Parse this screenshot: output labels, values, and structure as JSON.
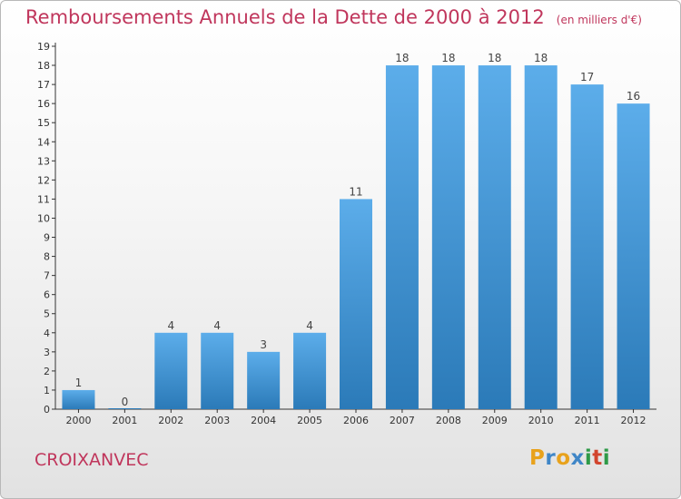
{
  "header": {
    "title": "Remboursements Annuels de la Dette de 2000 à 2012",
    "unit": "(en milliers d'€)"
  },
  "footer": {
    "commune": "CROIXANVEC",
    "logo": {
      "letters": [
        "P",
        "r",
        "o",
        "x",
        "i",
        "t",
        "i"
      ],
      "colors": [
        "#e8a21c",
        "#3f86c7",
        "#e8a21c",
        "#3f86c7",
        "#2f9a48",
        "#d2452e",
        "#2f9a48"
      ]
    }
  },
  "colors": {
    "bar_light": "#5cadea",
    "bar_dark": "#2b7ab8",
    "axis": "#333333",
    "title": "#c0365c"
  },
  "chart_data": {
    "type": "bar",
    "categories": [
      "2000",
      "2001",
      "2002",
      "2003",
      "2004",
      "2005",
      "2006",
      "2007",
      "2008",
      "2009",
      "2010",
      "2011",
      "2012"
    ],
    "values": [
      1,
      0,
      4,
      4,
      3,
      4,
      11,
      18,
      18,
      18,
      18,
      17,
      16
    ],
    "data_labels": [
      "1",
      "0",
      "4",
      "4",
      "3",
      "4",
      "11",
      "18",
      "18",
      "18",
      "18",
      "17",
      "16"
    ],
    "y_ticks": [
      0,
      1,
      2,
      3,
      4,
      5,
      6,
      7,
      8,
      9,
      10,
      11,
      12,
      13,
      14,
      15,
      16,
      17,
      18,
      19
    ],
    "ylim": [
      0,
      19
    ],
    "grid": false,
    "legend": "none"
  }
}
